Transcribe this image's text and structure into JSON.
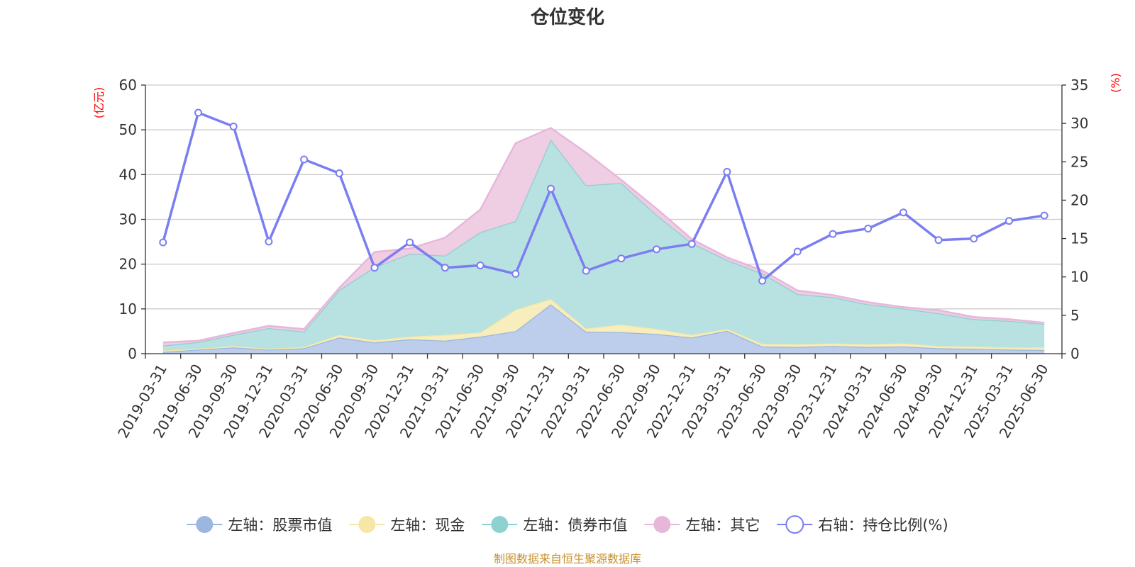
{
  "chart_data": {
    "type": "area",
    "title": "仓位变化",
    "left_unit": "(亿元)",
    "right_unit": "(%)",
    "source": "制图数据来自恒生聚源数据库",
    "left_axis": {
      "min": 0,
      "max": 60,
      "ticks": [
        0,
        10,
        20,
        30,
        40,
        50,
        60
      ]
    },
    "right_axis": {
      "min": 0,
      "max": 35,
      "ticks": [
        0,
        5,
        10,
        15,
        20,
        25,
        30,
        35
      ]
    },
    "categories": [
      "2019-03-31",
      "2019-06-30",
      "2019-09-30",
      "2019-12-31",
      "2020-03-31",
      "2020-06-30",
      "2020-09-30",
      "2020-12-31",
      "2021-03-31",
      "2021-06-30",
      "2021-09-30",
      "2021-12-31",
      "2022-03-31",
      "2022-06-30",
      "2022-09-30",
      "2022-12-31",
      "2023-03-31",
      "2023-06-30",
      "2023-09-30",
      "2023-12-31",
      "2024-03-31",
      "2024-06-30",
      "2024-09-30",
      "2024-12-31",
      "2025-03-31",
      "2025-06-30"
    ],
    "stacked_series": [
      {
        "name": "左轴：股票市值",
        "color": "#9bb7e1",
        "fill": "#b8cbea",
        "values": [
          0.4,
          0.9,
          1.4,
          0.9,
          1.2,
          3.6,
          2.5,
          3.2,
          2.9,
          3.8,
          5.0,
          11.0,
          4.9,
          4.8,
          4.4,
          3.6,
          5.1,
          1.6,
          1.5,
          1.7,
          1.5,
          1.6,
          1.2,
          1.1,
          0.9,
          0.8
        ]
      },
      {
        "name": "左轴：现金",
        "color": "#f6e7a6",
        "fill": "#f8ecb8",
        "values": [
          0.3,
          0.2,
          0.3,
          0.2,
          0.3,
          0.6,
          0.5,
          0.6,
          1.3,
          0.9,
          4.8,
          1.2,
          0.7,
          1.7,
          1.1,
          0.6,
          0.4,
          0.6,
          0.6,
          0.6,
          0.6,
          0.7,
          0.5,
          0.5,
          0.5,
          0.6
        ]
      },
      {
        "name": "左轴：债券市值",
        "color": "#8dd1d1",
        "fill": "#b4e0e0",
        "values": [
          1.1,
          1.5,
          2.5,
          4.6,
          3.4,
          10.0,
          16.3,
          18.5,
          17.7,
          22.4,
          19.8,
          35.6,
          32.0,
          31.6,
          25.5,
          20.5,
          15.4,
          15.7,
          11.2,
          10.3,
          8.9,
          7.8,
          7.3,
          6.1,
          5.9,
          5.2
        ]
      },
      {
        "name": "左轴：其它",
        "color": "#e7b7da",
        "fill": "#eecbe3",
        "values": [
          0.7,
          0.3,
          0.4,
          0.5,
          0.6,
          0.5,
          3.4,
          1.2,
          4.0,
          5.1,
          17.4,
          2.6,
          7.3,
          0.7,
          1.4,
          0.9,
          0.6,
          0.7,
          0.8,
          0.5,
          0.5,
          0.3,
          0.7,
          0.5,
          0.4,
          0.3
        ]
      }
    ],
    "line_series": {
      "name": "右轴：持仓比例(%)",
      "color": "#7b7ef0",
      "values": [
        14.5,
        31.4,
        29.6,
        14.6,
        25.3,
        23.5,
        11.2,
        14.5,
        11.2,
        11.5,
        10.4,
        21.5,
        10.8,
        12.4,
        13.6,
        14.3,
        23.7,
        9.5,
        13.3,
        15.6,
        16.3,
        18.4,
        14.8,
        15.0,
        17.3,
        18.0
      ]
    },
    "legend": {
      "placement": "bottom"
    },
    "grid": true
  }
}
